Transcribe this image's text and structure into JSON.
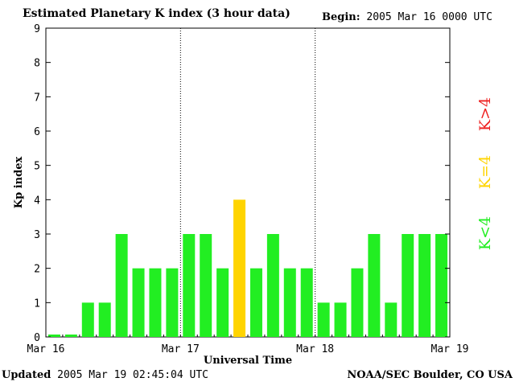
{
  "header": {
    "title": "Estimated Planetary K index (3 hour data)",
    "begin_label": "Begin:",
    "begin_value": "2005 Mar 16 0000 UTC"
  },
  "footer": {
    "updated_label": "Updated",
    "updated_value": "2005 Mar 19 02:45:04 UTC",
    "credit": "NOAA/SEC Boulder, CO USA"
  },
  "legend": [
    {
      "text": "K<4",
      "color": "#22ee22"
    },
    {
      "text": "K=4",
      "color": "#ffd400"
    },
    {
      "text": "K>4",
      "color": "#ee2222"
    }
  ],
  "chart_data": {
    "type": "bar",
    "xlabel": "Universal Time",
    "ylabel": "Kp index",
    "ylim": [
      0,
      9
    ],
    "yticks": [
      "0",
      "1",
      "2",
      "3",
      "4",
      "5",
      "6",
      "7",
      "8",
      "9"
    ],
    "xticks": [
      "Mar 16",
      "Mar 17",
      "Mar 18",
      "Mar 19"
    ],
    "day_dividers": [
      "Mar 17",
      "Mar 18"
    ],
    "intervals_per_day": 8,
    "values": [
      0,
      0,
      1,
      1,
      3,
      2,
      2,
      2,
      3,
      3,
      2,
      4,
      2,
      3,
      2,
      2,
      1,
      1,
      2,
      3,
      1,
      3,
      3,
      3
    ],
    "colors": {
      "below4": "#22ee22",
      "equal4": "#ffd400",
      "above4": "#ee2222"
    }
  }
}
